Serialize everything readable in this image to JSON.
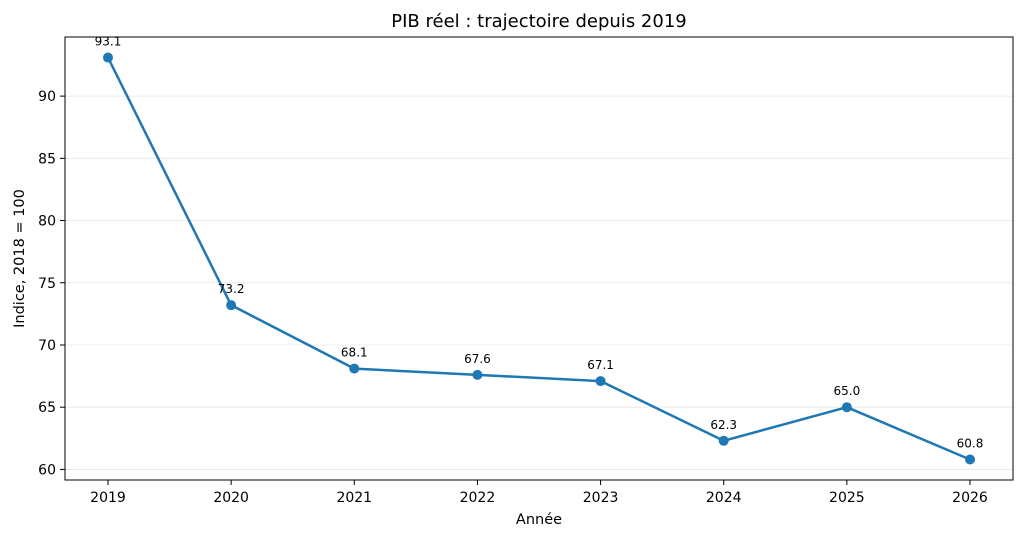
{
  "chart_data": {
    "type": "line",
    "title": "PIB réel : trajectoire depuis 2019",
    "xlabel": "Année",
    "ylabel": "Indice, 2018 = 100",
    "x": [
      "2019",
      "2020",
      "2021",
      "2022",
      "2023",
      "2024",
      "2025",
      "2026"
    ],
    "series": [
      {
        "values": [
          93.1,
          73.2,
          68.1,
          67.6,
          67.1,
          62.3,
          65.0,
          60.8
        ],
        "labels": [
          "93.1",
          "73.2",
          "68.1",
          "67.6",
          "67.1",
          "62.3",
          "65.0",
          "60.8"
        ],
        "color": "#1f77b4"
      }
    ],
    "yticks": [
      "60",
      "65",
      "70",
      "75",
      "80",
      "85",
      "90"
    ],
    "ylim": [
      59.15,
      94.75
    ],
    "grid": "horizontal",
    "legend": "none"
  }
}
